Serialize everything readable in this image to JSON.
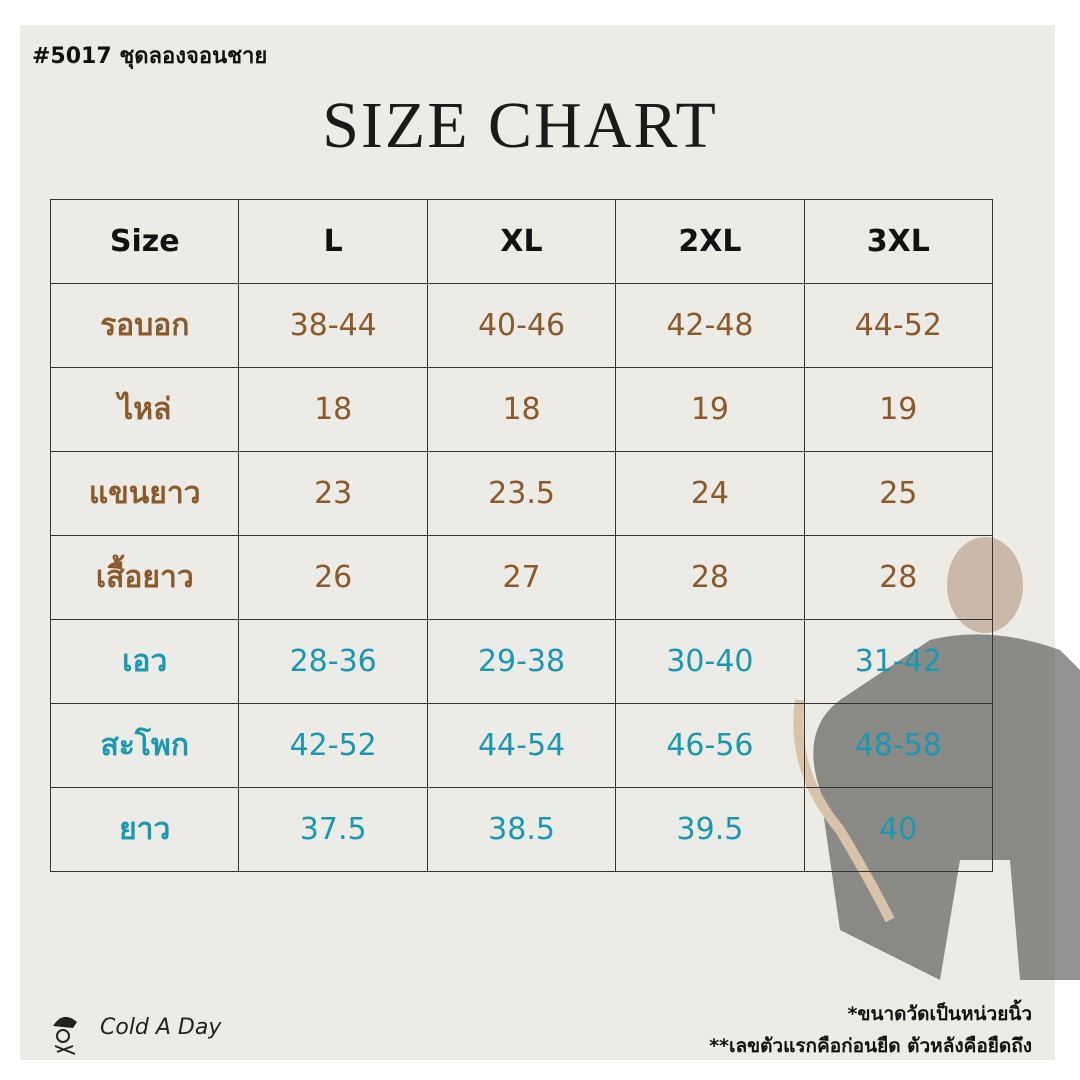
{
  "header": {
    "code": "#5017 ชุดลองจอนชาย",
    "title": "SIZE CHART"
  },
  "table": {
    "header": [
      "Size",
      "L",
      "XL",
      "2XL",
      "3XL"
    ],
    "rows": [
      [
        "รอบอก",
        "38-44",
        "40-46",
        "42-48",
        "44-52"
      ],
      [
        "ไหล่",
        "18",
        "18",
        "19",
        "19"
      ],
      [
        "แขนยาว",
        "23",
        "23.5",
        "24",
        "25"
      ],
      [
        "เสื้อยาว",
        "26",
        "27",
        "28",
        "28"
      ],
      [
        "เอว",
        "28-36",
        "29-38",
        "30-40",
        "31-42"
      ],
      [
        "สะโพก",
        "42-52",
        "44-54",
        "46-56",
        "48-58"
      ],
      [
        "ยาว",
        "37.5",
        "38.5",
        "39.5",
        "40"
      ]
    ]
  },
  "brand": "Cold A Day",
  "notes": [
    "*ขนาดวัดเป็นหน่วยนิ้ว",
    "**เลขตัวแรกคือก่อนยืด ตัวหลังคือยืดถึง"
  ]
}
